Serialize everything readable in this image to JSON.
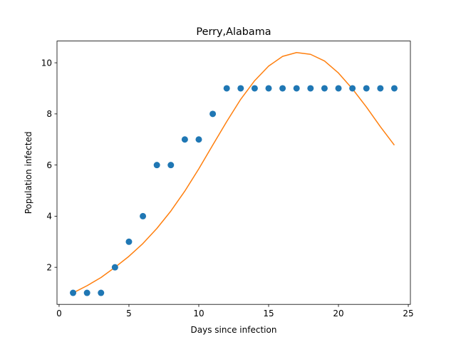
{
  "chart_data": {
    "type": "scatter",
    "title": "Perry,Alabama",
    "xlabel": "Days since infection",
    "ylabel": "Population infected",
    "xlim": [
      -0.15,
      25.15
    ],
    "ylim": [
      0.55,
      10.85
    ],
    "xticks": [
      0,
      5,
      10,
      15,
      20,
      25
    ],
    "yticks": [
      2,
      4,
      6,
      8,
      10
    ],
    "grid": false,
    "series": [
      {
        "kind": "scatter",
        "color": "#1f77b4",
        "x": [
          1,
          2,
          3,
          4,
          5,
          6,
          7,
          8,
          9,
          10,
          11,
          12,
          13,
          14,
          15,
          16,
          17,
          18,
          19,
          20,
          21,
          22,
          23,
          24
        ],
        "y": [
          1,
          1,
          1,
          2,
          3,
          4,
          6,
          6,
          7,
          7,
          8,
          9,
          9,
          9,
          9,
          9,
          9,
          9,
          9,
          9,
          9,
          9,
          9,
          9
        ]
      },
      {
        "kind": "line",
        "color": "#ff7f0e",
        "x": [
          1,
          2,
          3,
          4,
          5,
          6,
          7,
          8,
          9,
          10,
          11,
          12,
          13,
          14,
          15,
          16,
          17,
          18,
          19,
          20,
          21,
          22,
          23,
          24
        ],
        "y": [
          1.0,
          1.28,
          1.6,
          2.0,
          2.43,
          2.93,
          3.52,
          4.2,
          4.98,
          5.85,
          6.78,
          7.7,
          8.57,
          9.3,
          9.87,
          10.25,
          10.4,
          10.33,
          10.07,
          9.6,
          8.98,
          8.27,
          7.5,
          6.78
        ]
      }
    ]
  }
}
